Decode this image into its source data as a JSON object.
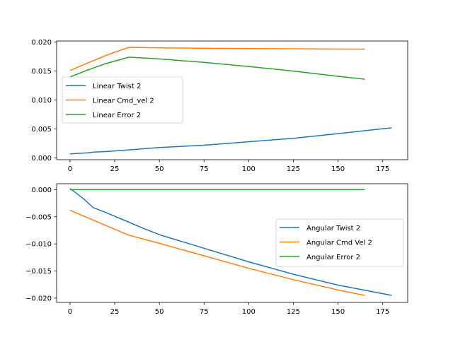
{
  "chart_data": [
    {
      "type": "line",
      "title": "",
      "xlabel": "",
      "ylabel": "",
      "xlim": [
        -7.5,
        189
      ],
      "ylim": [
        -0.0003,
        0.0202
      ],
      "xticks": [
        0,
        25,
        50,
        75,
        100,
        125,
        150,
        175
      ],
      "xtick_labels": [
        "0",
        "25",
        "50",
        "75",
        "100",
        "125",
        "150",
        "175"
      ],
      "yticks": [
        0.0,
        0.005,
        0.01,
        0.015,
        0.02
      ],
      "ytick_labels": [
        "0.000",
        "0.005",
        "0.010",
        "0.015",
        "0.020"
      ],
      "legend_position": "center-left",
      "grid": false,
      "series": [
        {
          "name": "Linear Twist 2",
          "color": "#1f77b4",
          "x": [
            0,
            5,
            10,
            13,
            20,
            33,
            50,
            75,
            100,
            125,
            150,
            180
          ],
          "y": [
            0.0007,
            0.0008,
            0.0009,
            0.001,
            0.0011,
            0.0014,
            0.0018,
            0.0022,
            0.0028,
            0.0034,
            0.0042,
            0.0052
          ]
        },
        {
          "name": "Linear Cmd_vel 2",
          "color": "#ff7f0e",
          "x": [
            0,
            10,
            20,
            33,
            50,
            100,
            165
          ],
          "y": [
            0.0151,
            0.0164,
            0.0177,
            0.0191,
            0.019,
            0.0189,
            0.0188
          ]
        },
        {
          "name": "Linear Error 2",
          "color": "#2ca02c",
          "x": [
            0,
            10,
            20,
            33,
            50,
            75,
            100,
            125,
            150,
            165
          ],
          "y": [
            0.014,
            0.0152,
            0.0163,
            0.0174,
            0.0171,
            0.0165,
            0.0158,
            0.015,
            0.0141,
            0.0136
          ]
        }
      ]
    },
    {
      "type": "line",
      "title": "",
      "xlabel": "",
      "ylabel": "",
      "xlim": [
        -7.5,
        189
      ],
      "ylim": [
        -0.0208,
        0.0011
      ],
      "xticks": [
        0,
        25,
        50,
        75,
        100,
        125,
        150,
        175
      ],
      "xtick_labels": [
        "0",
        "25",
        "50",
        "75",
        "100",
        "125",
        "150",
        "175"
      ],
      "yticks": [
        0.0,
        -0.005,
        -0.01,
        -0.015,
        -0.02
      ],
      "ytick_labels": [
        "0.000",
        "−0.005",
        "−0.010",
        "−0.015",
        "−0.020"
      ],
      "legend_position": "center-right",
      "grid": false,
      "series": [
        {
          "name": "Angular Twist 2",
          "color": "#1f77b4",
          "x": [
            0,
            3,
            8,
            13,
            20,
            33,
            40,
            50,
            75,
            100,
            125,
            150,
            180
          ],
          "y": [
            0.0002,
            -0.0005,
            -0.0018,
            -0.0033,
            -0.0042,
            -0.006,
            -0.007,
            -0.0083,
            -0.0108,
            -0.0133,
            -0.0156,
            -0.0176,
            -0.0195
          ]
        },
        {
          "name": "Angular Cmd Vel 2",
          "color": "#ff7f0e",
          "x": [
            0,
            10,
            20,
            33,
            50,
            75,
            100,
            125,
            150,
            165
          ],
          "y": [
            -0.0038,
            -0.0052,
            -0.0066,
            -0.0084,
            -0.0099,
            -0.0122,
            -0.0145,
            -0.0166,
            -0.0185,
            -0.0195
          ]
        },
        {
          "name": "Angular Error 2",
          "color": "#2ca02c",
          "x": [
            0,
            10,
            20,
            33,
            50,
            75,
            100,
            125,
            150,
            165
          ],
          "y": [
            0.0,
            0.0,
            0.0,
            0.0,
            0.0,
            0.0,
            0.0,
            0.0,
            0.0,
            0.0
          ]
        }
      ]
    }
  ]
}
